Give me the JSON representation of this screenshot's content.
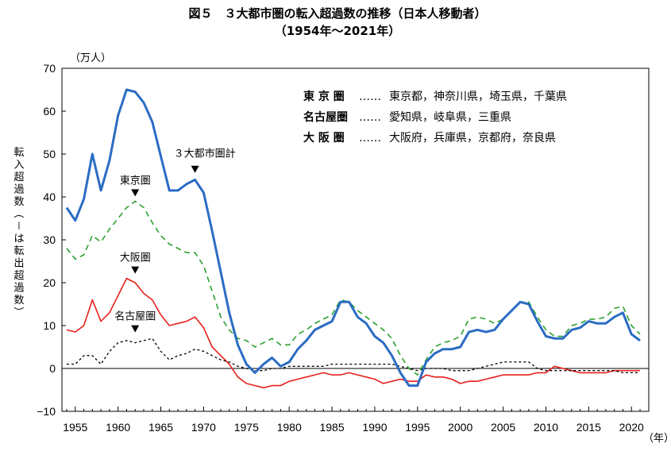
{
  "chart_data": {
    "type": "line",
    "title": "図５　３大都市圏の転入超過数の推移（日本人移動者）",
    "subtitle": "（1954年～2021年）",
    "unit_label": "（万人）",
    "ylabel": "転入超過数（－は転出超過数）",
    "xlabel": "（年）",
    "ylim": [
      -10,
      70
    ],
    "xlim": [
      1954,
      2021
    ],
    "yticks": [
      "70",
      "60",
      "50",
      "40",
      "30",
      "20",
      "10",
      "0",
      "−10"
    ],
    "xticks": [
      "1955",
      "1960",
      "1965",
      "1970",
      "1975",
      "1980",
      "1985",
      "1990",
      "1995",
      "2000",
      "2005",
      "2010",
      "2015",
      "2020"
    ],
    "grid": false,
    "legend": [
      {
        "key": "東 京 圏",
        "dots": "……",
        "members": "東京都，神奈川県，埼玉県，千葉県"
      },
      {
        "key": "名古屋圏",
        "dots": "……",
        "members": "愛知県，岐阜県，三重県"
      },
      {
        "key": "大 阪 圏",
        "dots": "……",
        "members": "大阪府，兵庫県，京都府，奈良県"
      }
    ],
    "annotations": [
      {
        "text": "３大都市圏計",
        "x": 1969,
        "y": 44.5
      },
      {
        "text": "東京圏",
        "x": 1962,
        "y": 39
      },
      {
        "text": "大阪圏",
        "x": 1962,
        "y": 21
      },
      {
        "text": "名古屋圏",
        "x": 1962,
        "y": 7.3
      }
    ],
    "x": [
      1954,
      1955,
      1956,
      1957,
      1958,
      1959,
      1960,
      1961,
      1962,
      1963,
      1964,
      1965,
      1966,
      1967,
      1968,
      1969,
      1970,
      1971,
      1972,
      1973,
      1974,
      1975,
      1976,
      1977,
      1978,
      1979,
      1980,
      1981,
      1982,
      1983,
      1984,
      1985,
      1986,
      1987,
      1988,
      1989,
      1990,
      1991,
      1992,
      1993,
      1994,
      1995,
      1996,
      1997,
      1998,
      1999,
      2000,
      2001,
      2002,
      2003,
      2004,
      2005,
      2006,
      2007,
      2008,
      2009,
      2010,
      2011,
      2012,
      2013,
      2014,
      2015,
      2016,
      2017,
      2018,
      2019,
      2020,
      2021
    ],
    "series": [
      {
        "name": "３大都市圏計",
        "color": "#2b6cc4",
        "dash": "solid",
        "values": [
          37.5,
          34.5,
          39.5,
          50,
          41.5,
          48.5,
          59,
          65,
          64.5,
          62,
          57.5,
          49.5,
          41.5,
          41.5,
          43,
          44,
          41,
          32,
          22.5,
          13,
          5.5,
          1,
          -1,
          1,
          2.5,
          0.5,
          1.5,
          4.5,
          6.5,
          9,
          10,
          11,
          15.5,
          15.5,
          12,
          10.5,
          7.5,
          6,
          3,
          -1,
          -4,
          -4,
          1.5,
          3.5,
          4.5,
          4.5,
          5,
          8.5,
          9,
          8.5,
          9,
          11.5,
          13.5,
          15.5,
          15,
          11,
          7.5,
          7,
          7,
          9,
          9.5,
          11,
          10.5,
          10.5,
          12,
          13,
          8,
          6.5
        ]
      },
      {
        "name": "東京圏",
        "color": "#2ca02c",
        "dash": "7,5",
        "values": [
          28,
          25.5,
          26.5,
          31,
          29.5,
          32.5,
          35,
          37.5,
          39,
          37.5,
          34,
          31,
          29,
          28,
          27,
          27,
          24,
          18,
          12,
          9,
          7,
          6.5,
          5,
          6,
          7,
          5.5,
          5.5,
          8,
          9,
          10.5,
          11.5,
          12.5,
          16,
          15.5,
          13.5,
          12,
          10.5,
          9,
          7,
          3,
          0,
          -1.5,
          2,
          5,
          6,
          6.5,
          7.5,
          11.5,
          12,
          11.5,
          10.5,
          11.5,
          13.5,
          15.5,
          15.5,
          12,
          9,
          7.5,
          7.5,
          10,
          10.5,
          11.5,
          11.5,
          12,
          14,
          14.5,
          10,
          8
        ]
      },
      {
        "name": "大阪圏",
        "color": "#e8201b",
        "dash": "solid",
        "values": [
          9,
          8.5,
          10,
          16,
          11,
          13,
          17,
          21,
          20,
          17.5,
          16,
          12.5,
          10,
          10.5,
          11,
          12,
          9.5,
          5,
          3,
          1,
          -2,
          -3.5,
          -4,
          -4.5,
          -4,
          -4,
          -3,
          -2.5,
          -2,
          -1.5,
          -1,
          -1.5,
          -1.5,
          -1,
          -1.5,
          -2,
          -2.5,
          -3.5,
          -3,
          -2.5,
          -3,
          -3,
          -1.5,
          -2,
          -2,
          -2.5,
          -3.5,
          -3,
          -3,
          -2.5,
          -2,
          -1.5,
          -1.5,
          -1.5,
          -1.5,
          -1,
          -1,
          0.5,
          0,
          -0.5,
          -1,
          -1,
          -1,
          -1,
          -0.5,
          -0.5,
          -0.5,
          -0.5
        ]
      },
      {
        "name": "名古屋圏",
        "color": "#000000",
        "dash": "3,3",
        "values": [
          1,
          1,
          3,
          3,
          1,
          4,
          6,
          6.5,
          6,
          6.5,
          7,
          4,
          2,
          3,
          3.5,
          4.5,
          4,
          3,
          2,
          1.5,
          0.5,
          0,
          -0.5,
          -0.5,
          0,
          0,
          0.5,
          0.5,
          0.5,
          0.5,
          0.5,
          1,
          1,
          1,
          1,
          1,
          1,
          1,
          1,
          0.5,
          0,
          -0.5,
          0,
          0,
          0,
          -0.5,
          -0.5,
          -0.5,
          0,
          0.5,
          1,
          1.5,
          1.5,
          1.5,
          1.5,
          0,
          -0.5,
          -0.5,
          -0.5,
          -0.5,
          -0.5,
          -0.5,
          -0.5,
          -0.5,
          -0.5,
          -1,
          -1,
          -1
        ]
      }
    ]
  }
}
